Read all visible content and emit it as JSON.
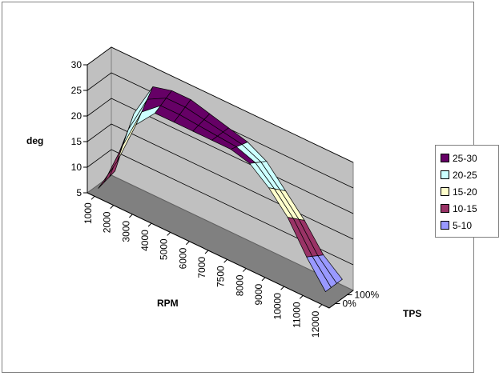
{
  "chart_data": {
    "type": "surface",
    "title": "",
    "zlabel": "deg",
    "xlabel": "RPM",
    "ylabel": "TPS",
    "zlim": [
      5,
      30
    ],
    "z_ticks": [
      "5",
      "10",
      "15",
      "20",
      "25",
      "30"
    ],
    "x_categories": [
      "1000",
      "2000",
      "3000",
      "4000",
      "5000",
      "6000",
      "7000",
      "7500",
      "8000",
      "9000",
      "10000",
      "11000",
      "12000"
    ],
    "y_categories": [
      "0%",
      "100%"
    ],
    "series": [
      {
        "name": "0%",
        "values": [
          6,
          13,
          22,
          26,
          26,
          26,
          26,
          26,
          25,
          22,
          18,
          12,
          7
        ]
      },
      {
        "name": "100%",
        "values": [
          7,
          20,
          27,
          28,
          28,
          27,
          26,
          25,
          23,
          19,
          15,
          10,
          7
        ]
      }
    ],
    "legend": {
      "position": "right",
      "entries": [
        {
          "label": "25-30",
          "color": "#660066"
        },
        {
          "label": "20-25",
          "color": "#ccffff"
        },
        {
          "label": "15-20",
          "color": "#ffffcc"
        },
        {
          "label": "10-15",
          "color": "#993366"
        },
        {
          "label": "5-10",
          "color": "#9999ff"
        }
      ]
    },
    "grid": true,
    "wall_color": "#c0c0c0",
    "floor_color": "#808080"
  }
}
